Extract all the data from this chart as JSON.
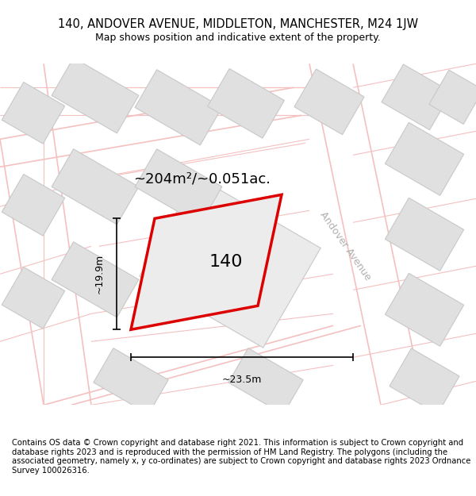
{
  "title": "140, ANDOVER AVENUE, MIDDLETON, MANCHESTER, M24 1JW",
  "subtitle": "Map shows position and indicative extent of the property.",
  "footer": "Contains OS data © Crown copyright and database right 2021. This information is subject to Crown copyright and database rights 2023 and is reproduced with the permission of HM Land Registry. The polygons (including the associated geometry, namely x, y co-ordinates) are subject to Crown copyright and database rights 2023 Ordnance Survey 100026316.",
  "area_label": "~204m²/~0.051ac.",
  "width_label": "~23.5m",
  "height_label": "~19.9m",
  "property_label": "140",
  "map_bg": "#ffffff",
  "building_color": "#e0e0e0",
  "building_edge": "#c8c8c8",
  "property_edge": "#dd0000",
  "property_fill": "#ececec",
  "street_label_color": "#b0b0b0",
  "road_pink": "#f5c0c0",
  "dim_color": "#000000",
  "title_fontsize": 10.5,
  "subtitle_fontsize": 9,
  "footer_fontsize": 7.2,
  "area_fontsize": 13,
  "property_label_fontsize": 16,
  "street_fontsize": 9,
  "dim_fontsize": 9
}
